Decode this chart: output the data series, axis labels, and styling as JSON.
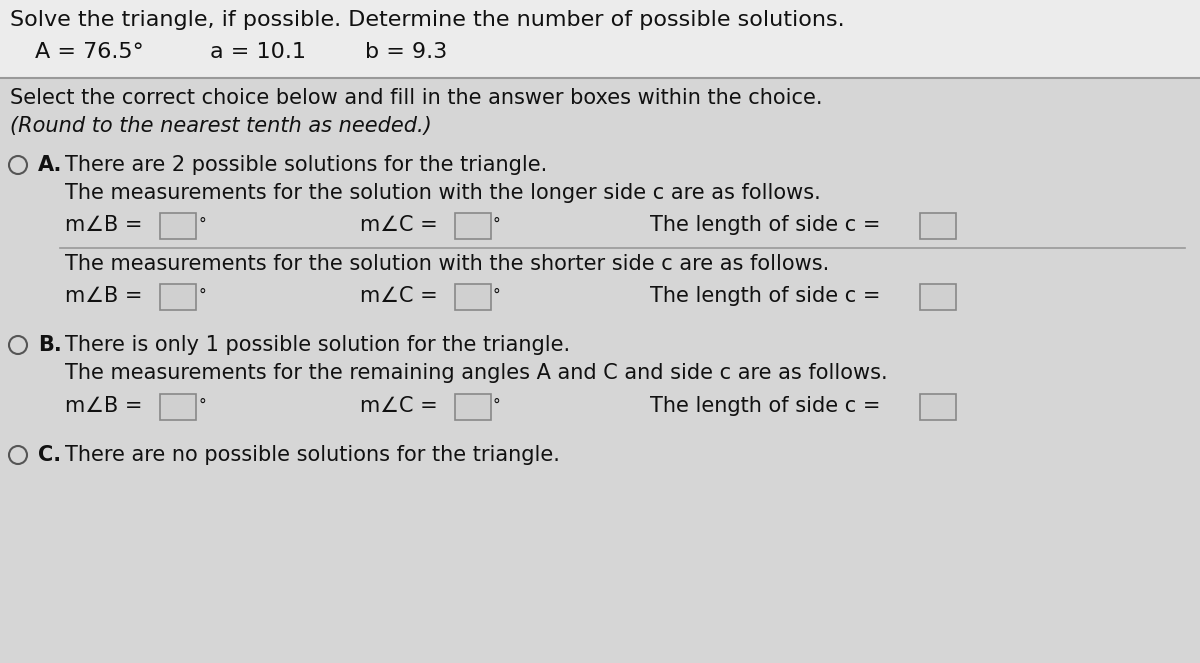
{
  "bg_color_top": "#e8e8e8",
  "bg_color_bottom": "#d8d8d8",
  "separator_color": "#aaaaaa",
  "title_line1": "Solve the triangle, if possible. Determine the number of possible solutions.",
  "given_A": "A = 76.5°",
  "given_a": "a = 10.1",
  "given_b": "b = 9.3",
  "instruction_line1": "Select the correct choice below and fill in the answer boxes within the choice.",
  "instruction_line2": "(Round to the nearest tenth as needed.)",
  "opt_A_label": "A.",
  "opt_A_text": "There are 2 possible solutions for the triangle.",
  "opt_A_longer": "The measurements for the solution with the longer side c are as follows.",
  "opt_A_shorter": "The measurements for the solution with the shorter side c are as follows.",
  "opt_B_label": "B.",
  "opt_B_text": "There is only 1 possible solution for the triangle.",
  "opt_B_desc": "The measurements for the remaining angles A and C and side c are as follows.",
  "opt_C_label": "C.",
  "opt_C_text": "There are no possible solutions for the triangle.",
  "mzb_label": "m∠B =",
  "mzc_label": "m∠C =",
  "c_label": "The length of side c =",
  "font_family": "DejaVu Sans",
  "fs_title": 16,
  "fs_given": 16,
  "fs_body": 15,
  "fs_italic": 15,
  "text_color": "#111111",
  "italic_color": "#111111",
  "box_color": "#bbbbbb",
  "box_fill": "#d8d8d8"
}
